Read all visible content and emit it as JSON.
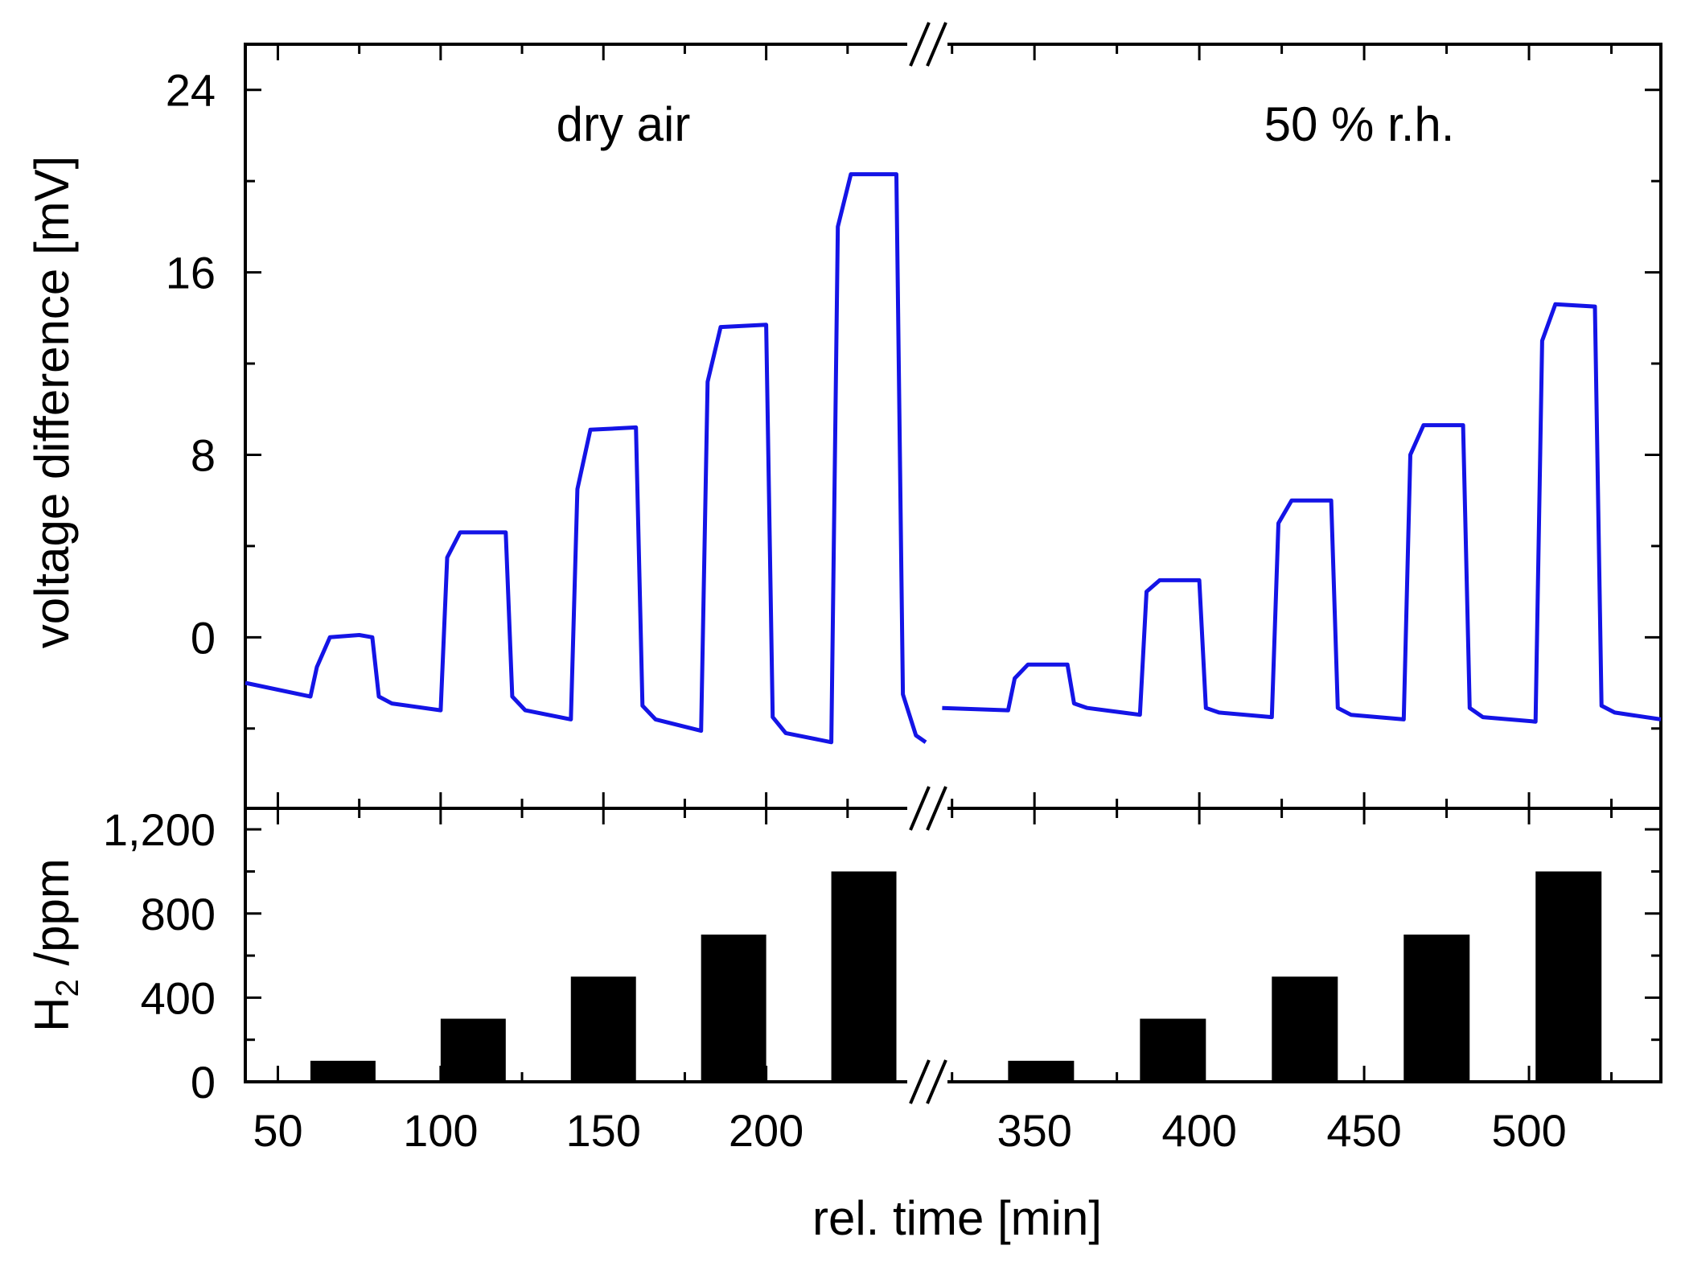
{
  "chart_data": [
    {
      "id": "top",
      "type": "line",
      "ylabel": "voltage difference [mV]",
      "ylim": [
        -7.5,
        26
      ],
      "yticks": [
        0,
        8,
        16,
        24
      ],
      "annotations": [
        "dry air",
        "50 % r.h."
      ],
      "series_color": "#1414e6",
      "segments": [
        {
          "name": "dry air",
          "x": [
            40,
            60,
            62,
            66,
            75,
            79,
            81,
            85,
            100,
            102,
            106,
            120,
            122,
            126,
            140,
            142,
            146,
            160,
            162,
            166,
            180,
            182,
            186,
            200,
            202,
            206,
            220,
            222,
            226,
            240,
            242,
            246,
            249
          ],
          "y": [
            -2.0,
            -2.6,
            -1.3,
            0.0,
            0.1,
            0.0,
            -2.6,
            -2.9,
            -3.2,
            3.5,
            4.6,
            4.6,
            -2.6,
            -3.2,
            -3.6,
            6.5,
            9.1,
            9.2,
            -3.0,
            -3.6,
            -4.1,
            11.2,
            13.6,
            13.7,
            -3.5,
            -4.2,
            -4.6,
            18.0,
            20.3,
            20.3,
            -2.5,
            -4.3,
            -4.6
          ]
        },
        {
          "name": "50 % r.h.",
          "x": [
            322,
            342,
            344,
            348,
            360,
            362,
            366,
            382,
            384,
            388,
            400,
            402,
            406,
            422,
            424,
            428,
            440,
            442,
            446,
            462,
            464,
            468,
            480,
            482,
            486,
            502,
            504,
            508,
            520,
            522,
            526,
            540
          ],
          "y": [
            -3.1,
            -3.2,
            -1.8,
            -1.2,
            -1.2,
            -2.9,
            -3.1,
            -3.4,
            2.0,
            2.5,
            2.5,
            -3.1,
            -3.3,
            -3.5,
            5.0,
            6.0,
            6.0,
            -3.1,
            -3.4,
            -3.6,
            8.0,
            9.3,
            9.3,
            -3.1,
            -3.5,
            -3.7,
            13.0,
            14.6,
            14.5,
            -3.0,
            -3.3,
            -3.6
          ]
        }
      ]
    },
    {
      "id": "bottom",
      "type": "bar",
      "ylabel": "H",
      "ylabel_sub": "2",
      "ylabel_suffix": " /ppm",
      "ylim": [
        0,
        1300
      ],
      "yticks": [
        0,
        400,
        800,
        1200
      ],
      "ytick_labels": [
        "0",
        "400",
        "800",
        "1,200"
      ],
      "bars": [
        {
          "x0": 60,
          "x1": 80,
          "value": 100
        },
        {
          "x0": 100,
          "x1": 120,
          "value": 300
        },
        {
          "x0": 140,
          "x1": 160,
          "value": 500
        },
        {
          "x0": 180,
          "x1": 200,
          "value": 700
        },
        {
          "x0": 220,
          "x1": 240,
          "value": 1000
        },
        {
          "x0": 342,
          "x1": 362,
          "value": 100
        },
        {
          "x0": 382,
          "x1": 402,
          "value": 300
        },
        {
          "x0": 422,
          "x1": 442,
          "value": 500
        },
        {
          "x0": 462,
          "x1": 482,
          "value": 700
        },
        {
          "x0": 502,
          "x1": 522,
          "value": 1000
        }
      ],
      "bar_color": "#000000"
    }
  ],
  "x_axis": {
    "xlabel": "rel. time [min]",
    "broken": true,
    "segment1": {
      "range": [
        40,
        250
      ],
      "ticks": [
        50,
        100,
        150,
        200
      ],
      "tick_labels": [
        "50",
        "100",
        "150",
        "200"
      ]
    },
    "segment2": {
      "range": [
        318,
        540
      ],
      "ticks": [
        350,
        400,
        450,
        500
      ],
      "tick_labels": [
        "350",
        "400",
        "450",
        "500"
      ]
    }
  }
}
